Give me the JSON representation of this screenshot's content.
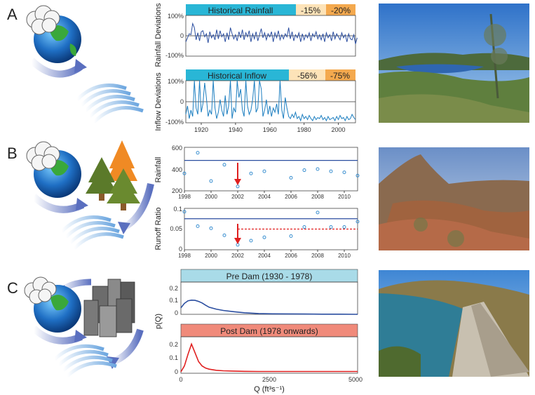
{
  "panels": {
    "a": {
      "letter": "A"
    },
    "b": {
      "letter": "B"
    },
    "c": {
      "letter": "C"
    }
  },
  "colors": {
    "cyan_header": "#29b6d6",
    "light_orange": "#fde3b8",
    "orange": "#f4a94e",
    "blue_series": "#2b4ea0",
    "light_blue_series": "#1c7ec0",
    "pink_header": "#f08a7a",
    "pale_blue_header": "#a9dbe8",
    "red": "#e02020",
    "point_blue": "#3a8fd0"
  },
  "chart_data": [
    {
      "id": "historical-rainfall",
      "type": "line",
      "header": {
        "label": "Historical Rainfall",
        "pct1": "-15%",
        "pct2": "-20%"
      },
      "ylabel": "Rainfall Deviations",
      "yticks": [
        "100%",
        "0",
        "-100%"
      ],
      "ylim": [
        -100,
        100
      ],
      "xlim": [
        1911,
        2010
      ],
      "x_start": 1911,
      "x_step": 1,
      "values": [
        -30,
        -10,
        10,
        5,
        60,
        40,
        -20,
        15,
        -25,
        20,
        25,
        -5,
        10,
        -35,
        20,
        -10,
        5,
        -20,
        30,
        -15,
        25,
        -5,
        10,
        -30,
        15,
        -20,
        40,
        10,
        -15,
        5,
        -25,
        20,
        -10,
        30,
        -20,
        15,
        -5,
        25,
        -30,
        10,
        -15,
        20,
        -25,
        5,
        35,
        -10,
        15,
        -20,
        10,
        -5,
        20,
        -30,
        15,
        -10,
        25,
        -20,
        5,
        -15,
        10,
        -5,
        40,
        -15,
        20,
        -25,
        5,
        -10,
        15,
        -30,
        10,
        -20,
        5,
        -10,
        15,
        -25,
        10,
        -5,
        20,
        -15,
        5,
        -20,
        10,
        -30,
        15,
        -10,
        5,
        -25,
        20,
        -15,
        10,
        -5,
        -20,
        15,
        -10,
        5,
        -30,
        10,
        -15,
        -20,
        5,
        -40,
        -10
      ]
    },
    {
      "id": "historical-inflow",
      "type": "line",
      "header": {
        "label": "Historical Inflow",
        "pct1": "-56%",
        "pct2": "-75%"
      },
      "ylabel": "Inflow Deviations",
      "yticks": [
        "100%",
        "0",
        "-100%"
      ],
      "xticks": [
        "1920",
        "1940",
        "1960",
        "1980",
        "2000"
      ],
      "ylim": [
        -100,
        100
      ],
      "xlim": [
        1911,
        2010
      ],
      "x_start": 1911,
      "x_step": 1,
      "values": [
        -60,
        -20,
        -80,
        -40,
        -70,
        100,
        -30,
        -60,
        100,
        -50,
        -10,
        90,
        20,
        -70,
        -40,
        -60,
        100,
        -30,
        -80,
        -50,
        10,
        -40,
        -70,
        30,
        -60,
        -20,
        100,
        -80,
        -30,
        -50,
        100,
        20,
        60,
        -40,
        -70,
        100,
        -20,
        -60,
        -40,
        10,
        100,
        -50,
        -30,
        100,
        60,
        -70,
        -40,
        10,
        -60,
        -20,
        -70,
        -30,
        -50,
        -10,
        -60,
        100,
        -40,
        -80,
        20,
        -30,
        -70,
        -80,
        -60,
        -75,
        -50,
        -80,
        -70,
        -90,
        -60,
        -80,
        -70,
        -85,
        -65,
        -80,
        -90,
        -70,
        -85,
        -75,
        -80,
        -65,
        -85,
        -75,
        -90,
        -70,
        -85,
        -80,
        -75,
        -90,
        -70,
        -85,
        -65,
        -80,
        -75,
        -90,
        -70,
        -85,
        -80,
        -60,
        -75,
        -85
      ]
    },
    {
      "id": "rainfall-b",
      "type": "scatter",
      "ylabel": "Rainfall",
      "yticks": [
        "600",
        "400",
        "200"
      ],
      "xticks": [
        "1998",
        "2000",
        "2002",
        "2004",
        "2006",
        "2008",
        "2010"
      ],
      "ylim": [
        200,
        600
      ],
      "xlim": [
        1998,
        2011
      ],
      "mean_line": 480,
      "arrow_year": 2002,
      "points": [
        [
          1998,
          360
        ],
        [
          1999,
          550
        ],
        [
          2000,
          290
        ],
        [
          2001,
          440
        ],
        [
          2002,
          240
        ],
        [
          2003,
          360
        ],
        [
          2004,
          380
        ],
        [
          2006,
          320
        ],
        [
          2007,
          390
        ],
        [
          2008,
          400
        ],
        [
          2009,
          380
        ],
        [
          2010,
          370
        ],
        [
          2011,
          340
        ]
      ]
    },
    {
      "id": "runoff-ratio-b",
      "type": "scatter",
      "ylabel": "Runoff Ratio",
      "yticks": [
        "0.1",
        "0.05",
        "0"
      ],
      "xticks": [
        "1998",
        "2000",
        "2002",
        "2004",
        "2006",
        "2008",
        "2010"
      ],
      "ylim": [
        0,
        0.1
      ],
      "xlim": [
        1998,
        2011
      ],
      "mean_line": 0.075,
      "dashed_line": 0.05,
      "dashed_from": 2002,
      "arrow_year": 2002,
      "points": [
        [
          1998,
          0.092
        ],
        [
          1999,
          0.057
        ],
        [
          2000,
          0.052
        ],
        [
          2001,
          0.035
        ],
        [
          2002,
          0.012
        ],
        [
          2003,
          0.022
        ],
        [
          2004,
          0.03
        ],
        [
          2006,
          0.033
        ],
        [
          2007,
          0.055
        ],
        [
          2008,
          0.09
        ],
        [
          2009,
          0.055
        ],
        [
          2010,
          0.055
        ],
        [
          2011,
          0.068
        ]
      ]
    },
    {
      "id": "pre-dam",
      "type": "area",
      "header": "Pre Dam (1930 - 1978)",
      "ylabel": "p(Q)",
      "yticks": [
        "0.2",
        "0.1",
        "0"
      ],
      "ylim": [
        0,
        0.25
      ],
      "xlim": [
        0,
        5000
      ],
      "x": [
        0,
        100,
        200,
        300,
        400,
        500,
        600,
        700,
        800,
        1000,
        1200,
        1500,
        1800,
        2200,
        2600,
        3000,
        3500,
        4000,
        4500,
        5000
      ],
      "values": [
        0.05,
        0.085,
        0.105,
        0.11,
        0.108,
        0.1,
        0.088,
        0.07,
        0.055,
        0.04,
        0.03,
        0.02,
        0.012,
        0.006,
        0.004,
        0.003,
        0.002,
        0.001,
        0.001,
        0.0
      ]
    },
    {
      "id": "post-dam",
      "type": "area",
      "header": "Post Dam (1978 onwards)",
      "ylabel": "p(Q)",
      "yticks": [
        "0.2",
        "0.1",
        "0"
      ],
      "xticks": [
        "0",
        "2500",
        "5000"
      ],
      "xlabel": "Q (ft³s⁻¹)",
      "ylim": [
        0,
        0.25
      ],
      "xlim": [
        0,
        5000
      ],
      "x": [
        0,
        100,
        200,
        300,
        400,
        500,
        600,
        700,
        800,
        1000,
        1200,
        1500,
        1800,
        2200,
        2600,
        3000,
        3500,
        4000,
        4500,
        5000
      ],
      "values": [
        0.01,
        0.05,
        0.13,
        0.2,
        0.14,
        0.08,
        0.05,
        0.035,
        0.028,
        0.02,
        0.017,
        0.015,
        0.013,
        0.012,
        0.012,
        0.012,
        0.012,
        0.012,
        0.012,
        0.012
      ]
    }
  ]
}
